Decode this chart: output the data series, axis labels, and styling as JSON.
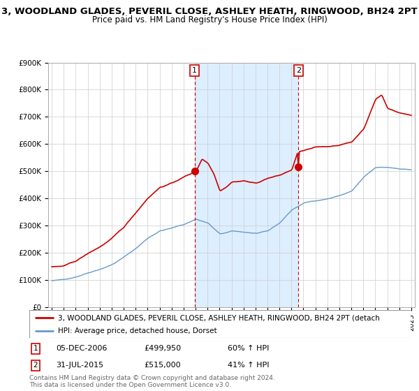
{
  "title": "3, WOODLAND GLADES, PEVERIL CLOSE, ASHLEY HEATH, RINGWOOD, BH24 2PT",
  "subtitle": "Price paid vs. HM Land Registry's House Price Index (HPI)",
  "ylim": [
    0,
    900000
  ],
  "yticks": [
    0,
    100000,
    200000,
    300000,
    400000,
    500000,
    600000,
    700000,
    800000,
    900000
  ],
  "ytick_labels": [
    "£0",
    "£100K",
    "£200K",
    "£300K",
    "£400K",
    "£500K",
    "£600K",
    "£700K",
    "£800K",
    "£900K"
  ],
  "sale1_year": 2006.92,
  "sale1_price": 499950,
  "sale2_year": 2015.58,
  "sale2_price": 515000,
  "sale1_date": "05-DEC-2006",
  "sale1_amount": "£499,950",
  "sale1_hpi": "60% ↑ HPI",
  "sale2_date": "31-JUL-2015",
  "sale2_amount": "£515,000",
  "sale2_hpi": "41% ↑ HPI",
  "red_line_color": "#cc0000",
  "blue_line_color": "#6699cc",
  "shaded_color": "#ddeeff",
  "grid_color": "#cccccc",
  "legend_line1": "3, WOODLAND GLADES, PEVERIL CLOSE, ASHLEY HEATH, RINGWOOD, BH24 2PT (detach",
  "legend_line2": "HPI: Average price, detached house, Dorset",
  "footnote": "Contains HM Land Registry data © Crown copyright and database right 2024.\nThis data is licensed under the Open Government Licence v3.0."
}
